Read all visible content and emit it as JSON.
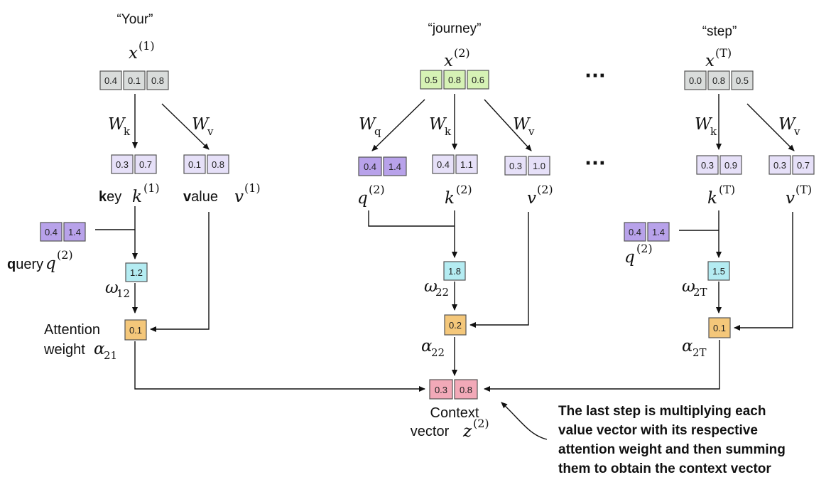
{
  "colors": {
    "input_gray": "#d9dcdb",
    "input_green": "#d6f2b5",
    "key_value_lavender": "#e6e0f8",
    "query_purple": "#b8a2ea",
    "omega_cyan": "#b4ecf2",
    "alpha_orange": "#f4c77a",
    "context_pink": "#f2a9b8",
    "border": "#555555",
    "ink": "#111111"
  },
  "tokens": [
    {
      "word": "“Your”",
      "x_sup": "(1)",
      "x_vals": [
        "0.4",
        "0.1",
        "0.8"
      ]
    },
    {
      "word": "“journey”",
      "x_sup": "(2)",
      "x_vals": [
        "0.5",
        "0.8",
        "0.6"
      ]
    },
    {
      "word": "“step”",
      "x_sup": "(T)",
      "x_vals": [
        "0.0",
        "0.8",
        "0.5"
      ]
    }
  ],
  "ellipsis": [
    "···",
    "···"
  ],
  "weights": {
    "Wk": {
      "base": "W",
      "sub": "k"
    },
    "Wv": {
      "base": "W",
      "sub": "v"
    },
    "Wq": {
      "base": "W",
      "sub": "q"
    }
  },
  "col1": {
    "key_vals": [
      "0.3",
      "0.7"
    ],
    "value_vals": [
      "0.1",
      "0.8"
    ],
    "key_label_bold": "k",
    "key_label_rest": "ey",
    "key_sym": "k",
    "key_sup": "(1)",
    "value_label_bold": "v",
    "value_label_rest": "alue",
    "value_sym": "v",
    "value_sup": "(1)",
    "query_vals": [
      "0.4",
      "1.4"
    ],
    "query_label_bold": "q",
    "query_label_rest": "uery",
    "query_sym": "q",
    "query_sup": "(2)",
    "omega_val": "1.2",
    "omega_sym": "ω",
    "omega_sub": "12",
    "alpha_val": "0.1",
    "alpha_text1": "Attention",
    "alpha_text2": "weight",
    "alpha_sym": "α",
    "alpha_sub": "21"
  },
  "col2": {
    "query_vals": [
      "0.4",
      "1.4"
    ],
    "key_vals": [
      "0.4",
      "1.1"
    ],
    "value_vals": [
      "0.3",
      "1.0"
    ],
    "q_sym": "q",
    "q_sup": "(2)",
    "k_sym": "k",
    "k_sup": "(2)",
    "v_sym": "v",
    "v_sup": "(2)",
    "omega_val": "1.8",
    "omega_sym": "ω",
    "omega_sub": "22",
    "alpha_val": "0.2",
    "alpha_sym": "α",
    "alpha_sub": "22"
  },
  "col3": {
    "key_vals": [
      "0.3",
      "0.9"
    ],
    "value_vals": [
      "0.3",
      "0.7"
    ],
    "k_sym": "k",
    "k_sup": "(T)",
    "v_sym": "v",
    "v_sup": "(T)",
    "query_vals": [
      "0.4",
      "1.4"
    ],
    "q_sym": "q",
    "q_sup": "(2)",
    "omega_val": "1.5",
    "omega_sym": "ω",
    "omega_sub": "2T",
    "alpha_val": "0.1",
    "alpha_sym": "α",
    "alpha_sub": "2T"
  },
  "context": {
    "vals": [
      "0.3",
      "0.8"
    ],
    "text1": "Context",
    "text2": "vector",
    "sym": "z",
    "sup": "(2)"
  },
  "annotation": [
    "The last step is multiplying each",
    "value vector with its respective",
    "attention weight and then summing",
    "them to obtain the context vector"
  ]
}
